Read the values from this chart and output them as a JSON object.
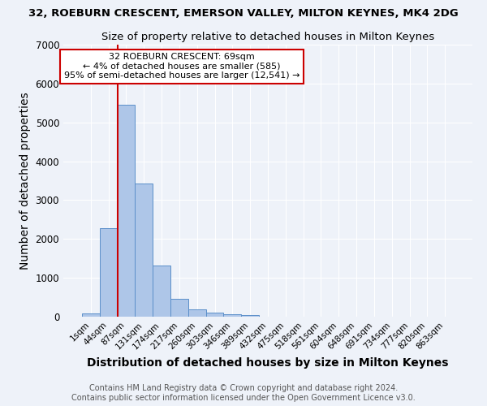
{
  "title1": "32, ROEBURN CRESCENT, EMERSON VALLEY, MILTON KEYNES, MK4 2DG",
  "title2": "Size of property relative to detached houses in Milton Keynes",
  "xlabel": "Distribution of detached houses by size in Milton Keynes",
  "ylabel": "Number of detached properties",
  "bar_values": [
    75,
    2280,
    5450,
    3420,
    1310,
    460,
    185,
    100,
    65,
    40,
    0,
    0,
    0,
    0,
    0,
    0,
    0,
    0,
    0,
    0,
    0
  ],
  "bar_labels": [
    "1sqm",
    "44sqm",
    "87sqm",
    "131sqm",
    "174sqm",
    "217sqm",
    "260sqm",
    "303sqm",
    "346sqm",
    "389sqm",
    "432sqm",
    "475sqm",
    "518sqm",
    "561sqm",
    "604sqm",
    "648sqm",
    "691sqm",
    "734sqm",
    "777sqm",
    "820sqm",
    "863sqm"
  ],
  "bar_color": "#aec6e8",
  "bar_edge_color": "#5b8fc9",
  "vline_color": "#cc0000",
  "vline_x": 1.5,
  "annotation_text": "32 ROEBURN CRESCENT: 69sqm\n← 4% of detached houses are smaller (585)\n95% of semi-detached houses are larger (12,541) →",
  "annotation_box_color": "#ffffff",
  "annotation_box_edge": "#cc0000",
  "ylim": [
    0,
    7000
  ],
  "footer1": "Contains HM Land Registry data © Crown copyright and database right 2024.",
  "footer2": "Contains public sector information licensed under the Open Government Licence v3.0.",
  "bg_color": "#eef2f9",
  "grid_color": "#ffffff",
  "title1_fontsize": 9.5,
  "title2_fontsize": 9.5,
  "axis_label_fontsize": 10,
  "tick_fontsize": 7.5,
  "footer_fontsize": 7,
  "annotation_fontsize": 8
}
